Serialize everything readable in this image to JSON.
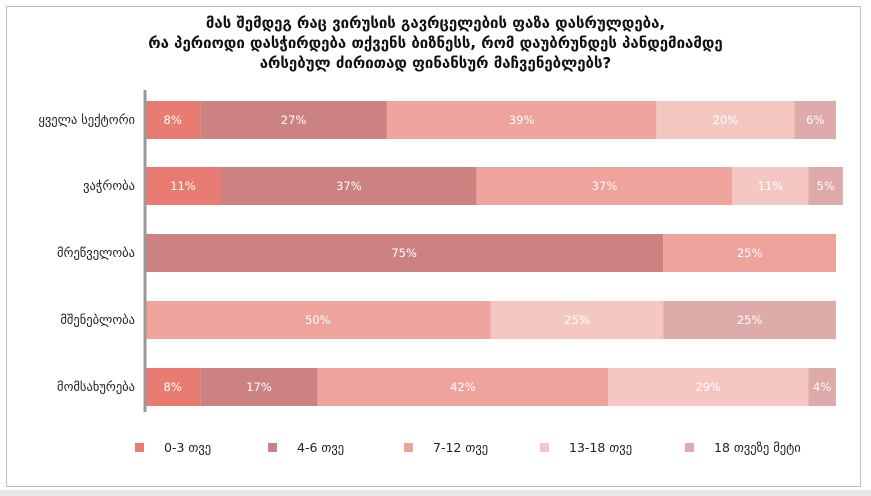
{
  "chart_data": {
    "type": "bar",
    "orientation": "horizontal",
    "stacked": true,
    "title": [
      "მას შემდეგ რაც ვირუსის გავრცელების ფაზა დასრულდება,",
      "რა პერიოდი დასჭირდება თქვენს ბიზნესს, რომ დაუბრუნდეს პანდემიამდე",
      "არსებულ ძირითად ფინანსურ მაჩვენებლებს?"
    ],
    "categories": [
      "ყველა სექტორი",
      "ვაჭრობა",
      "მრეწველობა",
      "მშენებლობა",
      "მომსახურება"
    ],
    "series": [
      {
        "name": "0-3 თვე",
        "color": "#E97C72",
        "values": [
          8,
          11,
          0,
          0,
          8
        ]
      },
      {
        "name": "4-6 თვე",
        "color": "#CD8282",
        "values": [
          27,
          37,
          75,
          0,
          17
        ]
      },
      {
        "name": "7-12 თვე",
        "color": "#EEA39D",
        "values": [
          39,
          37,
          25,
          50,
          42
        ]
      },
      {
        "name": "13-18 თვე",
        "color": "#F4C7C3",
        "values": [
          20,
          11,
          0,
          25,
          29
        ]
      },
      {
        "name": "18 თვეზე მეტი",
        "color": "#DEAAAA",
        "values": [
          6,
          5,
          0,
          25,
          4
        ]
      }
    ],
    "value_suffix": "%",
    "xlim": [
      0,
      100
    ],
    "legend": "bottom"
  }
}
